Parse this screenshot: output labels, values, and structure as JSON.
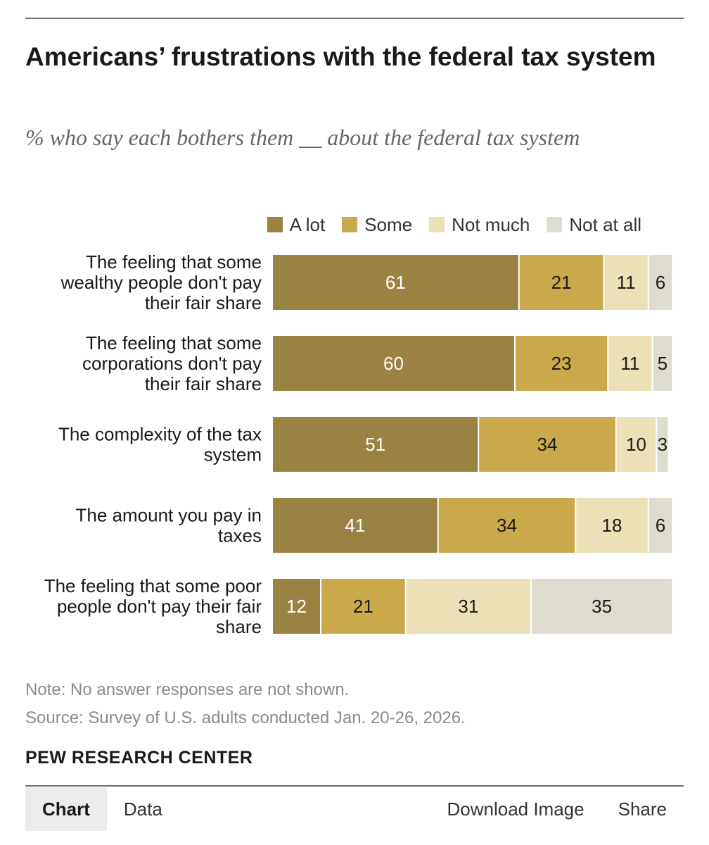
{
  "title": "Americans’ frustrations with the federal tax system",
  "subtitle": "% who say each bothers them __ about the federal tax system",
  "legend": [
    {
      "label": "A lot",
      "color": "#9a8342"
    },
    {
      "label": "Some",
      "color": "#c9a94b"
    },
    {
      "label": "Not much",
      "color": "#ece0b7"
    },
    {
      "label": "Not at all",
      "color": "#dedbcf"
    }
  ],
  "chart_data": {
    "type": "bar",
    "orientation": "horizontal",
    "stacked": true,
    "categories": [
      [
        "The feeling that some",
        "wealthy people don't pay",
        "their fair share"
      ],
      [
        "The feeling that some",
        "corporations don't pay",
        "their fair share"
      ],
      [
        "The complexity of the tax",
        "system"
      ],
      [
        "The amount you pay in",
        "taxes"
      ],
      [
        "The feeling that some poor",
        "people don't pay their fair",
        "share"
      ]
    ],
    "series": [
      {
        "name": "A lot",
        "color": "#9a8342",
        "label_color": "#ffffff",
        "values": [
          61,
          60,
          51,
          41,
          12
        ]
      },
      {
        "name": "Some",
        "color": "#c9a94b",
        "label_color": "#1a1a1a",
        "values": [
          21,
          23,
          34,
          34,
          21
        ]
      },
      {
        "name": "Not much",
        "color": "#ece0b7",
        "label_color": "#1a1a1a",
        "values": [
          11,
          11,
          10,
          18,
          31
        ]
      },
      {
        "name": "Not at all",
        "color": "#dedbcf",
        "label_color": "#1a1a1a",
        "values": [
          6,
          5,
          3,
          6,
          35
        ]
      }
    ],
    "xlim": [
      0,
      100
    ],
    "grid": false,
    "legend_position": "top-right"
  },
  "note": "Note: No answer responses are not shown.",
  "source": "Source: Survey of U.S. adults conducted Jan. 20-26, 2026.",
  "brand": "PEW RESEARCH CENTER",
  "footer": {
    "tabs": [
      "Chart",
      "Data"
    ],
    "actions": [
      "Download Image",
      "Share"
    ]
  }
}
